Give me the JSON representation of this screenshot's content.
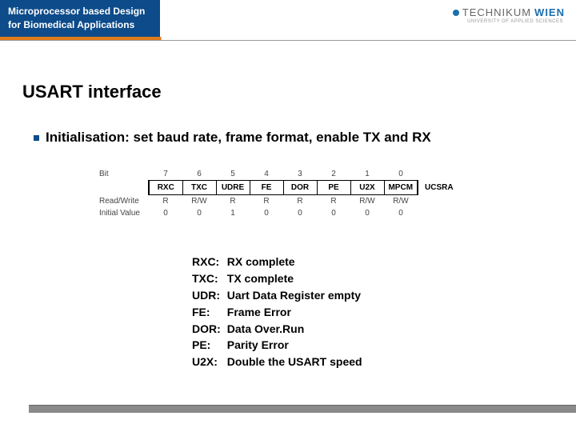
{
  "header": {
    "line1": "Microprocessor based Design",
    "line2": "for Biomedical Applications",
    "logo_text1": "TECHNIKUM",
    "logo_text2": "WIEN",
    "logo_sub": "UNIVERSITY OF APPLIED SCIENCES"
  },
  "title": "USART interface",
  "bullet": "Initialisation: set baud rate, frame format, enable TX and RX",
  "register": {
    "name": "UCSRA",
    "row_labels": {
      "bit": "Bit",
      "rw": "Read/Write",
      "init": "Initial Value"
    },
    "bit_numbers": [
      "7",
      "6",
      "5",
      "4",
      "3",
      "2",
      "1",
      "0"
    ],
    "bit_names": [
      "RXC",
      "TXC",
      "UDRE",
      "FE",
      "DOR",
      "PE",
      "U2X",
      "MPCM"
    ],
    "rw": [
      "R",
      "R/W",
      "R",
      "R",
      "R",
      "R",
      "R/W",
      "R/W"
    ],
    "initial": [
      "0",
      "0",
      "1",
      "0",
      "0",
      "0",
      "0",
      "0"
    ]
  },
  "definitions": [
    {
      "k": "RXC:",
      "v": "RX complete"
    },
    {
      "k": "TXC:",
      "v": "TX complete"
    },
    {
      "k": "UDR:",
      "v": "Uart Data Register empty"
    },
    {
      "k": "FE:",
      "v": "Frame Error"
    },
    {
      "k": "DOR:",
      "v": "Data Over.Run"
    },
    {
      "k": "PE:",
      "v": "Parity Error"
    },
    {
      "k": "U2X:",
      "v": "Double the USART speed"
    }
  ],
  "colors": {
    "header_blue": "#0d4b8a",
    "accent_orange": "#e07a1a",
    "logo_blue": "#1a6fb0",
    "footer_gray": "#8a8a8a"
  }
}
